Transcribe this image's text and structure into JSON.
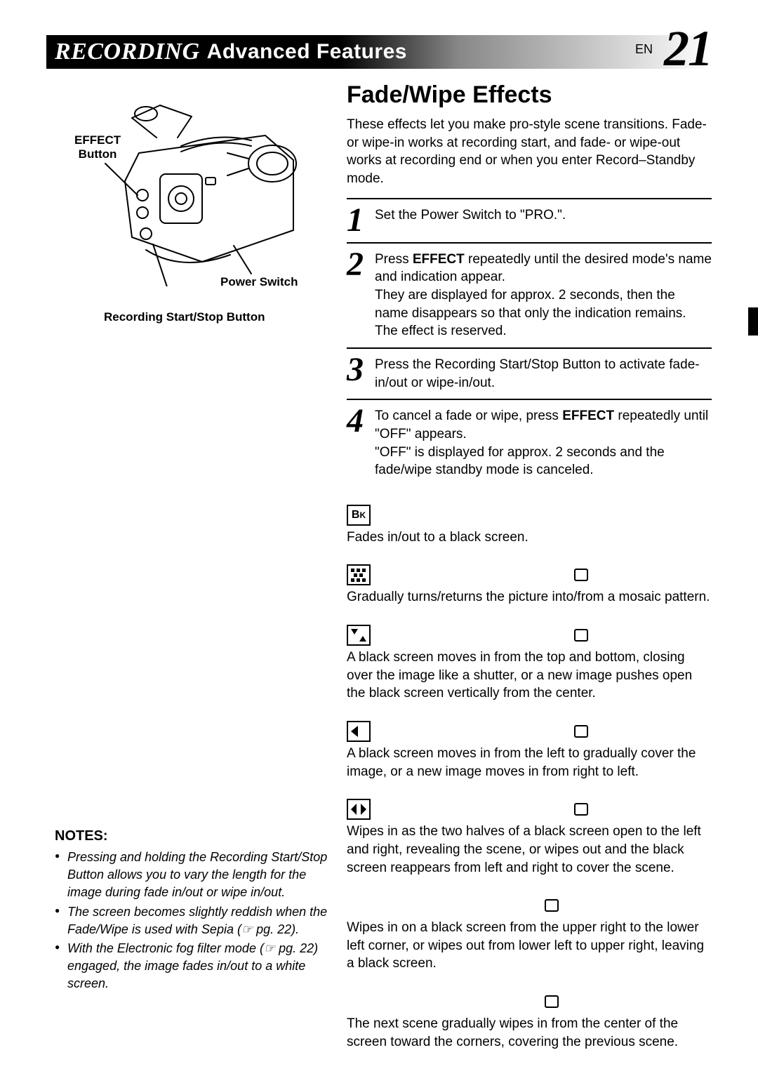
{
  "header": {
    "italic": "RECORDING",
    "regular": "Advanced Features",
    "en": "EN",
    "page": "21"
  },
  "left": {
    "effect_label_l1": "EFFECT",
    "effect_label_l2": "Button",
    "power_label": "Power Switch",
    "record_label": "Recording Start/Stop Button",
    "diagram_stroke": "#000000",
    "diagram_fill": "#ffffff"
  },
  "notes": {
    "heading": "NOTES:",
    "items": [
      "Pressing and holding the Recording Start/Stop Button allows you to vary the length for the image during fade in/out or wipe in/out.",
      "The screen becomes slightly reddish when the Fade/Wipe is used with Sepia (☞ pg. 22).",
      "With the Electronic fog filter mode (☞ pg. 22) engaged, the image fades in/out to a white screen."
    ]
  },
  "right": {
    "title": "Fade/Wipe Effects",
    "intro": "These effects let you make pro-style scene transitions. Fade- or wipe-in works at recording start, and fade- or wipe-out works at recording end or when you enter Record–Standby mode.",
    "steps": [
      {
        "n": "1",
        "text": "Set the Power Switch to \"PRO.\"."
      },
      {
        "n": "2",
        "html": "Press <b>EFFECT</b> repeatedly until the desired mode's name and indication appear.<br>They are displayed for approx. 2 seconds, then the name disappears so that only the indication remains. The effect is reserved."
      },
      {
        "n": "3",
        "text": "Press the Recording Start/Stop Button to activate fade-in/out or wipe-in/out."
      },
      {
        "n": "4",
        "html": "To cancel a fade or wipe, press <b>EFFECT</b> repeatedly until \"OFF\" appears.<br>\"OFF\" is displayed for approx. 2 seconds and the fade/wipe standby mode is canceled."
      }
    ],
    "effects": [
      {
        "icon": "bk",
        "tape": false,
        "desc": "Fades in/out to a black screen."
      },
      {
        "icon": "mosaic",
        "tape": true,
        "desc": "Gradually turns/returns the picture into/from a mosaic pattern."
      },
      {
        "icon": "shutter",
        "tape": true,
        "desc": "A black screen moves in from the top and bottom, closing over the image like a shutter, or a new image pushes open the black screen vertically from the center."
      },
      {
        "icon": "slide",
        "tape": true,
        "desc": "A black screen moves in from the left to gradually cover the image, or a new image moves in from right to left."
      },
      {
        "icon": "door",
        "tape": true,
        "desc": "Wipes in as the two halves of a black screen open to the left and right, revealing the scene, or wipes out and the black screen reappears from left and right to cover the scene."
      },
      {
        "icon": "none",
        "tape": true,
        "desc": "Wipes in on a black screen from the upper right to the lower left corner, or wipes out from lower left to upper right, leaving a black screen."
      },
      {
        "icon": "none",
        "tape": true,
        "desc": "The next scene gradually wipes in from the center of the screen toward the corners, covering the previous scene."
      }
    ]
  },
  "style": {
    "text_color": "#000000",
    "bg_color": "#ffffff",
    "header_gradient_from": "#000000",
    "header_gradient_to": "#ffffff",
    "body_fontsize": 19,
    "title_fontsize": 34,
    "stepnum_fontsize": 48
  }
}
